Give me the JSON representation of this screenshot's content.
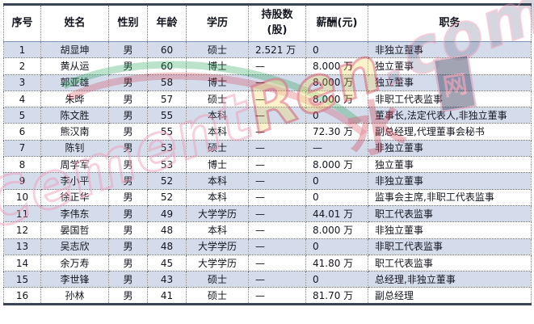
{
  "chart_data": {
    "type": "table",
    "columns": [
      {
        "key": "index",
        "label": "序号"
      },
      {
        "key": "name",
        "label": "姓名"
      },
      {
        "key": "gender",
        "label": "性别"
      },
      {
        "key": "age",
        "label": "年龄"
      },
      {
        "key": "education",
        "label": "学历"
      },
      {
        "key": "shares",
        "label": "持股数",
        "label_line2": "(股)"
      },
      {
        "key": "salary",
        "label": "薪酬(元)"
      },
      {
        "key": "position",
        "label": "职务"
      }
    ],
    "rows": [
      [
        "1",
        "胡显坤",
        "男",
        "60",
        "硕士",
        "2.521 万",
        "0",
        "非独立董事"
      ],
      [
        "2",
        "黄从运",
        "男",
        "60",
        "博士",
        "—",
        "8.000 万",
        "独立董事"
      ],
      [
        "3",
        "郭亚雄",
        "男",
        "58",
        "博士",
        "—",
        "8.000 万",
        "独立董事"
      ],
      [
        "4",
        "朱晔",
        "男",
        "57",
        "硕士",
        "—",
        "8.000 万",
        "非职工代表监事"
      ],
      [
        "5",
        "陈文胜",
        "男",
        "55",
        "本科",
        "—",
        "0",
        "董事长,法定代表人,非独立董事"
      ],
      [
        "6",
        "熊汉南",
        "男",
        "55",
        "本科",
        "—",
        "72.30 万",
        "副总经理,代理董事会秘书"
      ],
      [
        "7",
        "陈钊",
        "男",
        "53",
        "硕士",
        "—",
        "—",
        "非独立董事"
      ],
      [
        "8",
        "周学军",
        "男",
        "53",
        "博士",
        "—",
        "8.000 万",
        "独立董事"
      ],
      [
        "9",
        "李小平",
        "男",
        "52",
        "本科",
        "—",
        "0",
        "非独立董事"
      ],
      [
        "10",
        "徐正华",
        "男",
        "52",
        "本科",
        "—",
        "0",
        "监事会主席,非职工代表监事"
      ],
      [
        "11",
        "李伟东",
        "男",
        "49",
        "大学学历",
        "—",
        "44.01 万",
        "职工代表监事"
      ],
      [
        "12",
        "晏国哲",
        "男",
        "48",
        "本科",
        "—",
        "8.000 万",
        "非独立董事"
      ],
      [
        "13",
        "吴志欣",
        "男",
        "48",
        "大学学历",
        "—",
        "0",
        "非职工代表监事"
      ],
      [
        "14",
        "余万寿",
        "男",
        "45",
        "大学学历",
        "—",
        "41.80 万",
        "职工代表监事"
      ],
      [
        "15",
        "李世锋",
        "男",
        "43",
        "硕士",
        "—",
        "0",
        "总经理,非独立董事"
      ],
      [
        "16",
        "孙林",
        "男",
        "41",
        "硕士",
        "—",
        "81.70 万",
        "副总经理"
      ]
    ]
  },
  "watermark": {
    "part1": "Cement",
    "part2": "Ren",
    "part3": ".com",
    "cn_name": "水泥人网",
    "glyph": "水",
    "seal_glyph": "网"
  },
  "colors": {
    "row_alt": "#d4dcec",
    "row_base": "#ffffff",
    "border_thick": "#3a4454",
    "border_dotted": "#82878f",
    "header_separator": "#7f94b4",
    "text": "#14161f",
    "watermark_pink": "#ef9ab5",
    "watermark_red": "#d23a4e",
    "watermark_green": "#1e9e52",
    "watermark_yellow": "#f5d342",
    "watermark_navy": "#2b2f54"
  }
}
